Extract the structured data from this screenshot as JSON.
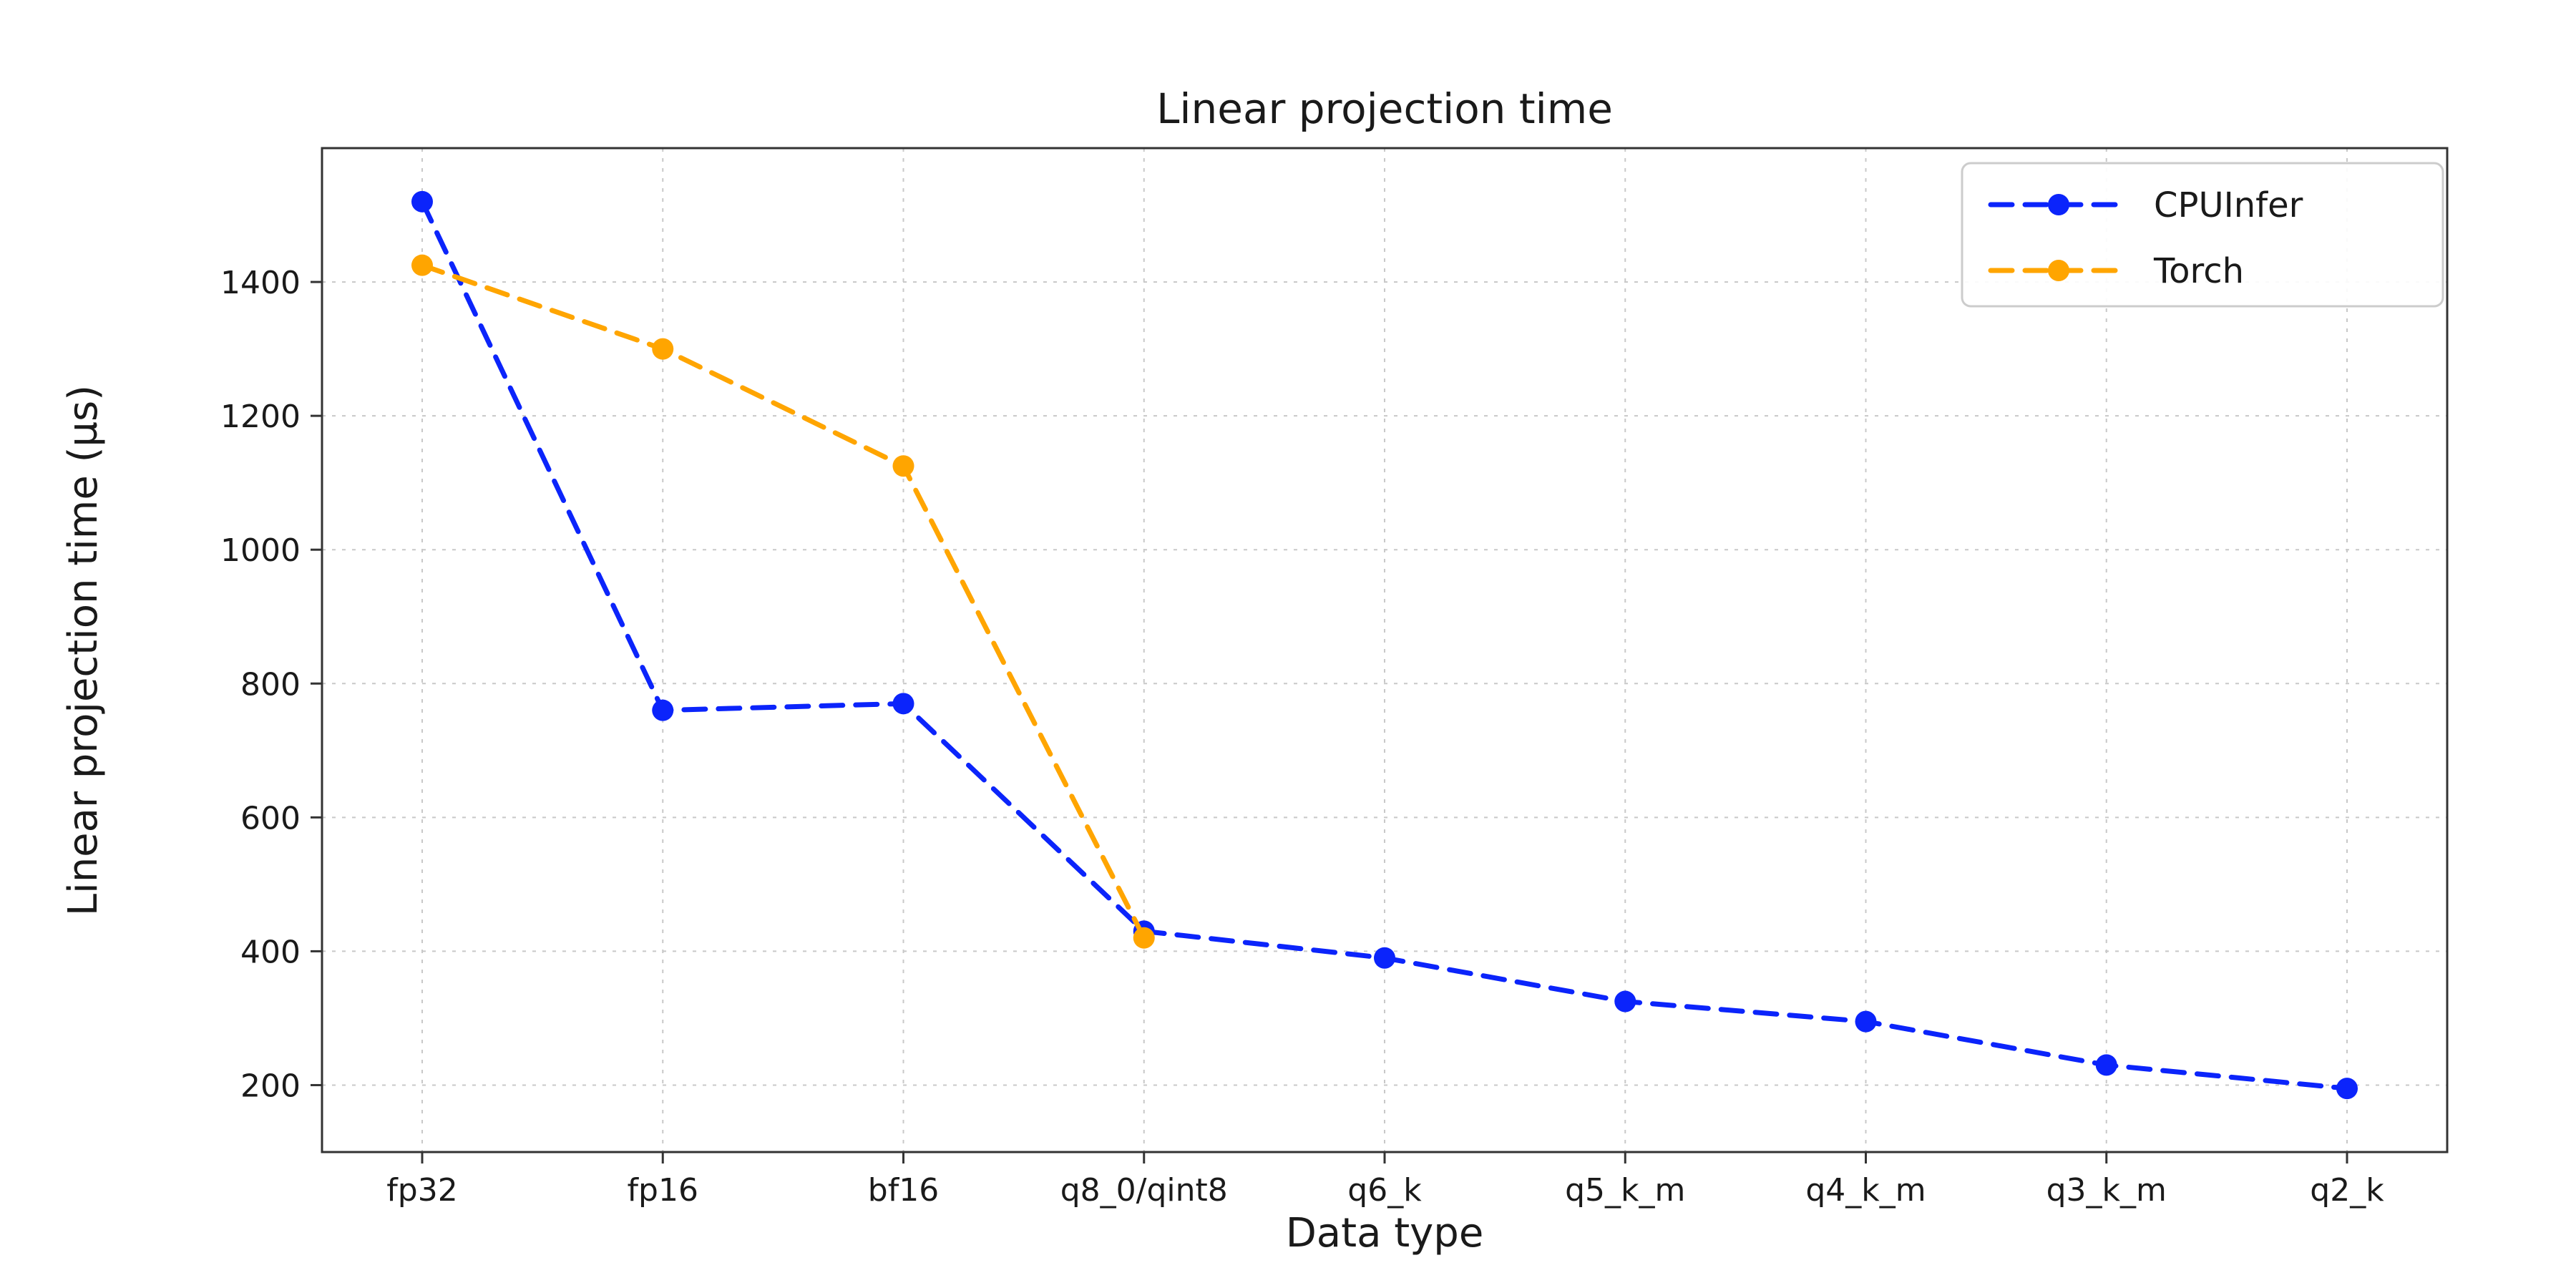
{
  "chart_data": {
    "type": "line",
    "title": "Linear projection time",
    "xlabel": "Data type",
    "ylabel": "Linear projection time (µs)",
    "categories": [
      "fp32",
      "fp16",
      "bf16",
      "q8_0/qint8",
      "q6_k",
      "q5_k_m",
      "q4_k_m",
      "q3_k_m",
      "q2_k"
    ],
    "series": [
      {
        "name": "CPUInfer",
        "color": "#0b24fb",
        "values": [
          1520,
          760,
          770,
          430,
          390,
          325,
          295,
          230,
          195
        ]
      },
      {
        "name": "Torch",
        "color": "#ffa500",
        "values": [
          1425,
          1300,
          1125,
          420,
          null,
          null,
          null,
          null,
          null
        ]
      }
    ],
    "yticks": [
      200,
      400,
      600,
      800,
      1000,
      1200,
      1400
    ],
    "ylim": [
      100,
      1600
    ],
    "grid": true,
    "grid_color": "#c8c8c8",
    "axis_color": "#333333",
    "text_color": "#1a1a1a",
    "line_style": "dashed",
    "marker": "circle",
    "legend_position": "top-right"
  }
}
